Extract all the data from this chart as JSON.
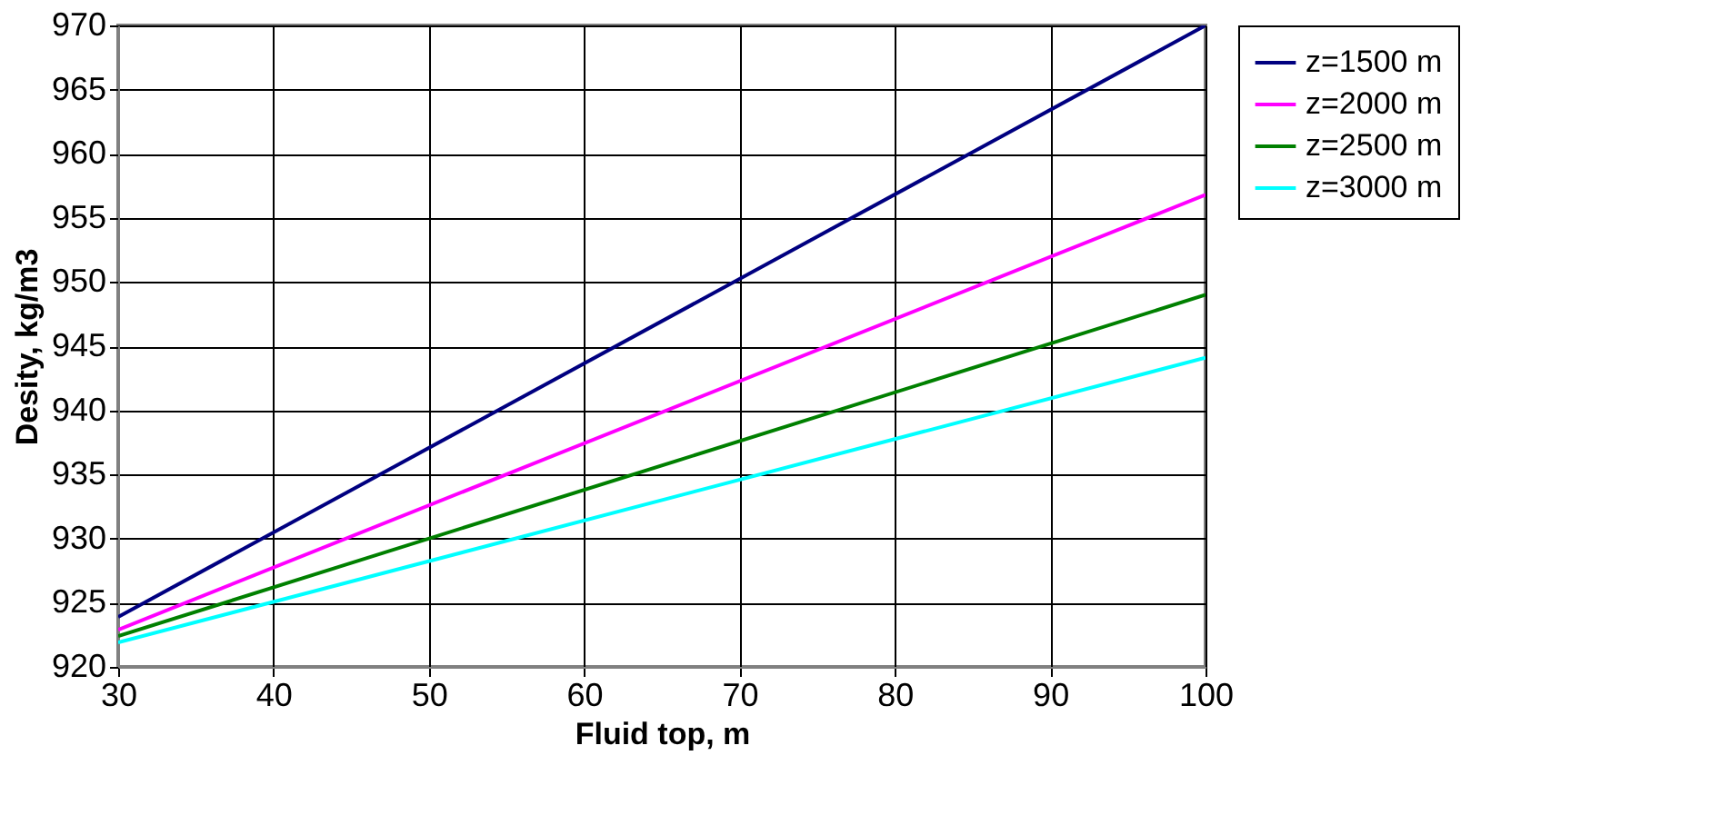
{
  "chart_data": {
    "type": "line",
    "xlabel": "Fluid top, m",
    "ylabel": "Desity, kg/m3",
    "x": [
      30,
      100
    ],
    "series": [
      {
        "name": "z=1500 m",
        "color": "#000080",
        "values": [
          923.9,
          970.0
        ]
      },
      {
        "name": "z=2000 m",
        "color": "#ff00ff",
        "values": [
          922.9,
          956.8
        ]
      },
      {
        "name": "z=2500 m",
        "color": "#008000",
        "values": [
          922.4,
          949.0
        ]
      },
      {
        "name": "z=3000 m",
        "color": "#00ffff",
        "values": [
          921.9,
          944.1
        ]
      }
    ],
    "xlim": [
      30,
      100
    ],
    "xticks": [
      30,
      40,
      50,
      60,
      70,
      80,
      90,
      100
    ],
    "ylim": [
      920,
      970
    ],
    "yticks": [
      920,
      925,
      930,
      935,
      940,
      945,
      950,
      955,
      960,
      965,
      970
    ],
    "grid": true,
    "legend": "right",
    "marker": "none",
    "line_style": "solid"
  }
}
